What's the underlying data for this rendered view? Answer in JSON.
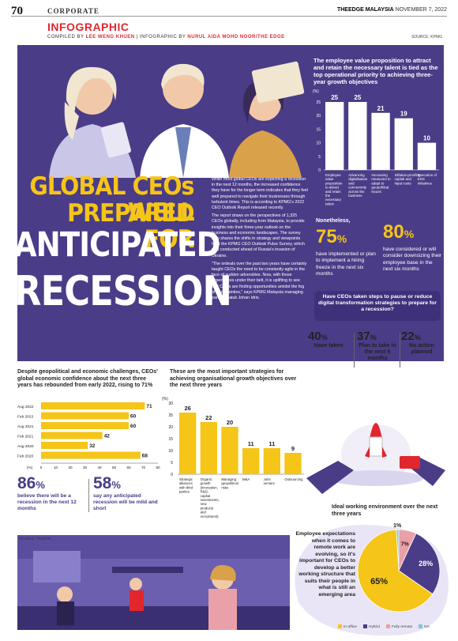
{
  "header": {
    "page_number": "70",
    "section": "CORPORATE",
    "publication": "THEEDGE MALAYSIA",
    "date": "NOVEMBER 7, 2022",
    "label": "INFOGRAPHIC",
    "compiled_prefix": "COMPILED BY",
    "compiled_by": "LEE WENG KHUEN",
    "infographic_prefix": "INFOGRAPHIC BY",
    "infographic_by": "NURUL AIDA MOHD NOOR/THE EDGE",
    "source": "SOURCE: KPMG"
  },
  "hero": {
    "title_line1": "GLOBAL CEOs WELL",
    "title_line2": "PREPARED FOR",
    "title_line3": "ANTICIPATED",
    "title_line4": "RECESSION",
    "para1": "While most global CEOs are expecting a recession in the next 12 months, the increased confidence they have for the longer term indicates that they feel well prepared to navigate their businesses through turbulent times. This is according to KPMG's 2022 CEO Outlook Report released recently.",
    "para2": "The report draws on the perspectives of 1,325 CEOs globally, including from Malaysia, to provide insights into their three-year outlook on the business and economic landscapes. The survey also shares the shifts in strategy and viewpoints from the KPMG CEO Outlook Pulse Survey, which was conducted ahead of Russia's invasion of Ukraine.",
    "para3": "\"The ordeals over the past two years have certainly taught CEOs the need to be constantly agile in the face of sudden adversities. Now, with those experiences under their belt, it is uplifting to see that CEOs are finding opportunities amidst the fog of uncertainties,\" says KPMG Malaysia managing partner Datuk Johan Idris."
  },
  "evp": {
    "title": "The employee value proposition to attract and retain the necessary talent is tied as the top operational priority to achieving three-year growth objectives",
    "nonetheless": "Nonetheless,",
    "stat1_value": "75",
    "stat1_unit": "%",
    "stat1_text": "have implemented or plan to implement a hiring freeze in the next six months",
    "stat2_value": "80",
    "stat2_unit": "%",
    "stat2_text": "have considered or will consider downsizing their employee base in the next six months"
  },
  "digital": {
    "question": "Have CEOs taken steps to pause or reduce digital transformation strategies to prepare for a recession?",
    "stats": [
      {
        "value": "40",
        "unit": "%",
        "label": "Have taken"
      },
      {
        "value": "37",
        "unit": "%",
        "label": "Plan to take in the next 6 months"
      },
      {
        "value": "22",
        "unit": "%",
        "label": "No action planned"
      }
    ]
  },
  "confidence": {
    "title": "Despite geopolitical and economic challenges, CEOs' global economic confidence about the next three years has rebounded from early 2022, rising to 71%",
    "stat1_value": "86",
    "stat1_unit": "%",
    "stat1_text": "believe there will be a recession in the next 12 months",
    "stat2_value": "58",
    "stat2_unit": "%",
    "stat2_text": "say any anticipated recession will be mild and short"
  },
  "strategies": {
    "title": "These are the most important strategies for achieving organisational growth objectives over the next three years"
  },
  "workplace": {
    "title": "Ideal working environment over the next three years",
    "lead": "Employee expectations when it comes to remote work are evolving, so it's important for CEOs to develop a better working structure that suits their people in what is still an emerging area",
    "office_source": "SOURCE: FREEPIK"
  },
  "chart_data": [
    {
      "type": "bar",
      "title": "The employee value proposition to attract and retain the necessary talent is tied as the top operational priority to achieving three-year growth objectives",
      "ylabel": "(%)",
      "ylim": [
        0,
        25
      ],
      "yticks": [
        0,
        5,
        10,
        15,
        20,
        25
      ],
      "categories": [
        "Employee value proposition to attract and retain the necessary talent",
        "Advancing digitalisation and connectivity across the business",
        "Increasing measures to adapt to geopolitical issues",
        "Inflation-proofing capital and input costs",
        "Execution of ESG initiatives"
      ],
      "values": [
        25,
        25,
        21,
        19,
        10
      ],
      "color": "#ffffff"
    },
    {
      "type": "bar",
      "orientation": "horizontal",
      "title": "Despite geopolitical and economic challenges, CEOs' global economic confidence about the next three years has rebounded from early 2022, rising to 71%",
      "xlabel": "(%)",
      "xlim": [
        0,
        80
      ],
      "xticks": [
        0,
        10,
        20,
        30,
        40,
        50,
        60,
        70,
        80
      ],
      "categories": [
        "Aug 2022",
        "Feb 2022",
        "Aug 2021",
        "Feb 2021",
        "Aug 2020",
        "Feb 2020"
      ],
      "values": [
        71,
        60,
        60,
        42,
        32,
        68
      ],
      "color": "#f5c518"
    },
    {
      "type": "bar",
      "title": "These are the most important strategies for achieving organisational growth objectives over the next three years",
      "ylabel": "(%)",
      "ylim": [
        0,
        30
      ],
      "yticks": [
        0,
        5,
        10,
        15,
        20,
        25,
        30
      ],
      "categories": [
        "Strategic alliances with third parties",
        "Organic growth (innovation, R&D, capital investments, new products and recruitment)",
        "Managing geopolitical risks",
        "M&A",
        "Joint venture",
        "Outsourcing"
      ],
      "values": [
        26,
        22,
        20,
        11,
        11,
        9
      ],
      "color": "#f5c518"
    },
    {
      "type": "pie",
      "title": "Ideal working environment over the next three years",
      "categories": [
        "In-office",
        "Hybrid",
        "Fully remote",
        "NA"
      ],
      "values": [
        65,
        28,
        7,
        1
      ],
      "colors": [
        "#f5c518",
        "#4b3c87",
        "#e9a0a8",
        "#7ec8d8"
      ]
    }
  ]
}
